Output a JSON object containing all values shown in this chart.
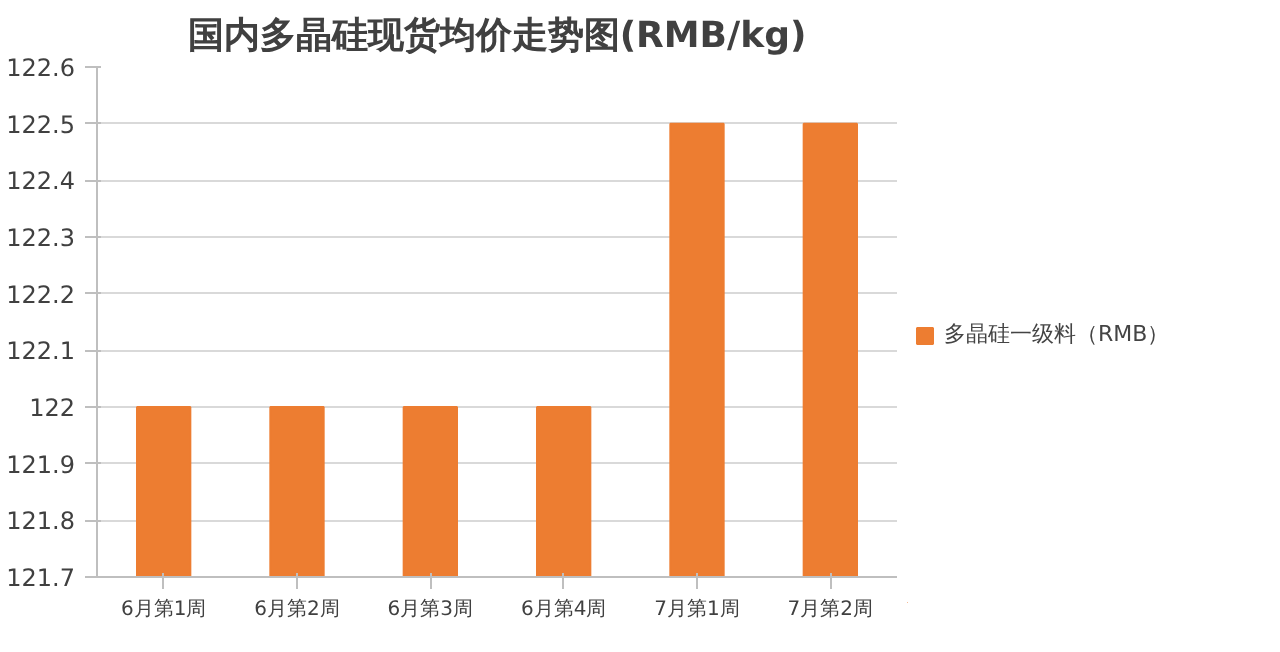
{
  "chart_data": {
    "type": "bar",
    "title": "国内多晶硅现货均价走势图(RMB/kg)",
    "categories": [
      "6月第1周",
      "6月第2周",
      "6月第3周",
      "6月第4周",
      "7月第1周",
      "7月第2周"
    ],
    "series": [
      {
        "name": "多晶硅一级料（RMB）",
        "color": "#ed7d31",
        "values": [
          122,
          122,
          122,
          122,
          122.5,
          122.5
        ]
      }
    ],
    "ylim": [
      121.7,
      122.6
    ],
    "yticks": [
      121.7,
      121.8,
      121.9,
      122,
      122.1,
      122.2,
      122.3,
      122.4,
      122.5,
      122.6
    ],
    "grid": "y",
    "legend": "right"
  }
}
